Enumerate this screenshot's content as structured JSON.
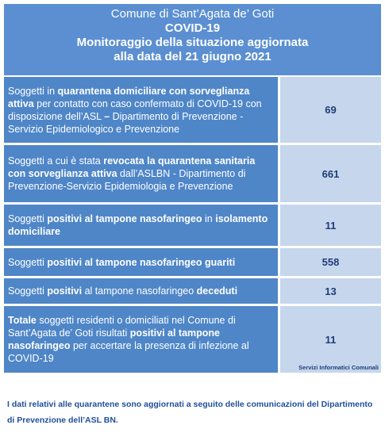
{
  "header": {
    "lines": [
      "Comune di Sant’Agata de’ Goti",
      "COVID-19",
      "Monitoraggio della situazione aggiornata",
      "alla data del 21 giugno 2021"
    ]
  },
  "table": {
    "rows": [
      {
        "segments": [
          {
            "text": "Soggetti in ",
            "bold": false
          },
          {
            "text": "quarantena domiciliare con sorveglianza attiva",
            "bold": true
          },
          {
            "text": " per contatto con caso confermato di COVID-19 con disposizione dell’ASL ",
            "bold": false
          },
          {
            "text": "–",
            "bold": true
          },
          {
            "text": " Dipartimento di Prevenzione - Servizio Epidemiologico e Prevenzione",
            "bold": false
          }
        ],
        "value": 69
      },
      {
        "segments": [
          {
            "text": "Soggetti a cui è stata ",
            "bold": false
          },
          {
            "text": "revocata la quarantena sanitaria con sorveglianza attiva",
            "bold": true
          },
          {
            "text": " dall’ASLBN - Dipartimento di Prevenzione-Servizio Epidemiologia e Prevenzione",
            "bold": false
          }
        ],
        "value": 661
      },
      {
        "segments": [
          {
            "text": "Soggetti ",
            "bold": false
          },
          {
            "text": "positivi al tampone nasofaringeo",
            "bold": true
          },
          {
            "text": " in ",
            "bold": false
          },
          {
            "text": "isolamento domiciliare",
            "bold": true
          }
        ],
        "value": 11
      },
      {
        "segments": [
          {
            "text": "Soggetti ",
            "bold": false
          },
          {
            "text": "positivi al tampone nasofaringeo guariti",
            "bold": true
          }
        ],
        "value": 558
      },
      {
        "segments": [
          {
            "text": "Soggetti ",
            "bold": false
          },
          {
            "text": "positivi",
            "bold": true
          },
          {
            "text": " al tampone nasofaringeo ",
            "bold": false
          },
          {
            "text": "deceduti",
            "bold": true
          }
        ],
        "value": 13
      },
      {
        "segments": [
          {
            "text": "Totale",
            "bold": true
          },
          {
            "text": " soggetti residenti o domiciliati nel Comune di Sant’Agata de’ Goti risultati ",
            "bold": false
          },
          {
            "text": "positivi al tampone nasofaringeo",
            "bold": true
          },
          {
            "text": " per accertare la presenza di infezione al COVID-19",
            "bold": false
          }
        ],
        "value": 11
      }
    ],
    "credit": "Servizi Informatici Comunali"
  },
  "footnote": "I dati relativi alle quarantene sono aggiornati a seguito delle comunicazioni del Dipartimento di Prevenzione dell’ASL BN."
}
